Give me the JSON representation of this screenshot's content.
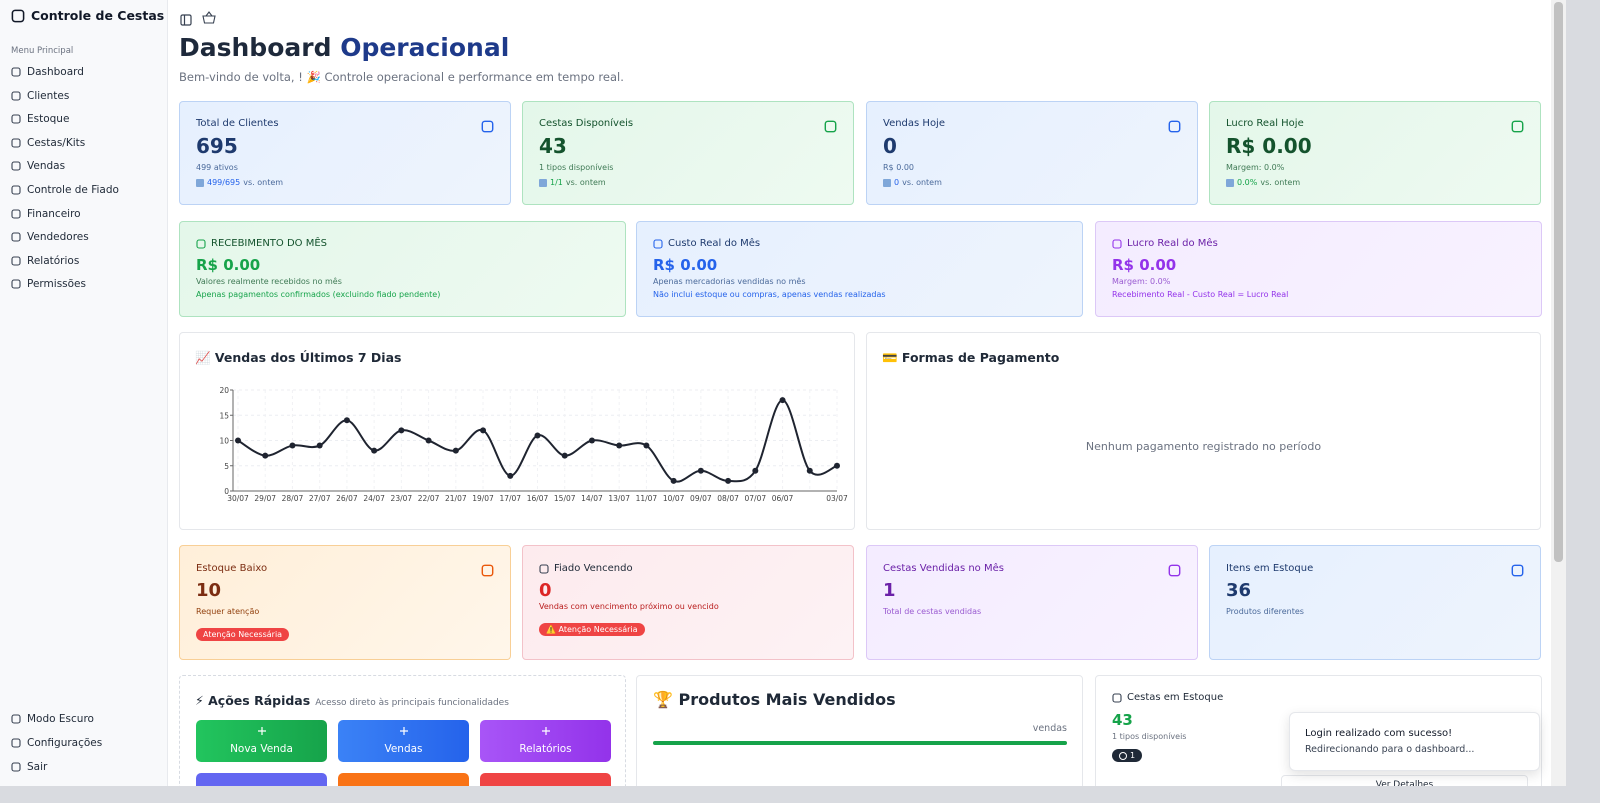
{
  "sidebar": {
    "brand": "Controle de Cestas",
    "section": "Menu Principal",
    "menu": [
      "Dashboard",
      "Clientes",
      "Estoque",
      "Cestas/Kits",
      "Vendas",
      "Controle de Fiado",
      "Financeiro",
      "Vendedores",
      "Relatórios",
      "Permissões"
    ],
    "footer": [
      "Modo Escuro",
      "Configurações",
      "Sair"
    ]
  },
  "header": {
    "title": [
      "Dashboard",
      "Operacional"
    ],
    "subtitle": "Bem-vindo de volta, ! 🎉 Controle operacional e performance em tempo real."
  },
  "summary_cards": [
    {
      "label": "Total de Clientes",
      "value": "695",
      "detail": "499 ativos",
      "trend": "499/695",
      "trend_text": "vs. ontem"
    },
    {
      "label": "Cestas Disponíveis",
      "value": "43",
      "detail": "1 tipos disponíveis",
      "trend": "1/1",
      "trend_text": "vs. ontem"
    },
    {
      "label": "Vendas Hoje",
      "value": "0",
      "detail": "R$ 0.00",
      "trend": "0",
      "trend_text": "vs. ontem"
    },
    {
      "label": "Lucro Real Hoje",
      "value": "R$ 0.00",
      "detail": "Margem: 0.0%",
      "trend": "0.0%",
      "trend_text": "vs. ontem"
    }
  ],
  "month_cards": [
    {
      "label": "RECEBIMENTO DO MÊS",
      "value": "R$ 0.00",
      "line1": "Valores realmente recebidos no mês",
      "line2": "Apenas pagamentos confirmados (excluindo fiado pendente)"
    },
    {
      "label": "Custo Real do Mês",
      "value": "R$ 0.00",
      "line1": "Apenas mercadorias vendidas no mês",
      "line2": "Não inclui estoque ou compras, apenas vendas realizadas"
    },
    {
      "label": "Lucro Real do Mês",
      "value": "R$ 0.00",
      "line1": "Margem: 0.0%",
      "line2": "Recebimento Real - Custo Real = Lucro Real"
    }
  ],
  "chart_data": {
    "type": "line",
    "title": "📈 Vendas dos Últimos 7 Dias",
    "categories": [
      "30/07",
      "29/07",
      "28/07",
      "27/07",
      "26/07",
      "24/07",
      "23/07",
      "22/07",
      "21/07",
      "19/07",
      "17/07",
      "16/07",
      "15/07",
      "14/07",
      "13/07",
      "11/07",
      "10/07",
      "09/07",
      "08/07",
      "07/07",
      "06/07",
      null,
      "03/07"
    ],
    "values": [
      10,
      7,
      9,
      9,
      14,
      8,
      12,
      10,
      8,
      12,
      3,
      11,
      7,
      10,
      9,
      9,
      2,
      4,
      2,
      4,
      18,
      4,
      5
    ],
    "color": "#1f2430",
    "ylim": [
      0,
      20
    ],
    "yticks": [
      0,
      5,
      10,
      15,
      20
    ],
    "grid": true
  },
  "payments": {
    "title": "💳 Formas de Pagamento",
    "empty": "Nenhum pagamento registrado no período"
  },
  "alert_cards": [
    {
      "label": "Estoque Baixo",
      "value": "10",
      "detail": "Requer atenção",
      "badge": "Atenção Necessária"
    },
    {
      "label": "Fiado Vencendo",
      "value": "0",
      "detail": "Vendas com vencimento próximo ou vencido",
      "badge": "⚠️ Atenção Necessária"
    },
    {
      "label": "Cestas Vendidas no Mês",
      "value": "1",
      "detail": "Total de cestas vendidas"
    },
    {
      "label": "Itens em Estoque",
      "value": "36",
      "detail": "Produtos diferentes"
    }
  ],
  "quick_actions": {
    "title": "⚡ Ações Rápidas",
    "subtitle": "Acesso direto às principais funcionalidades",
    "buttons": [
      "Nova Venda",
      "Vendas",
      "Relatórios"
    ]
  },
  "top_products": {
    "title": "🏆 Produtos Mais Vendidos",
    "unit": "vendas"
  },
  "stock_baskets": {
    "title": "Cestas em Estoque",
    "value": "43",
    "detail": "1 tipos disponíveis",
    "badge": "1",
    "link": "Ver Detalhes"
  },
  "toast": {
    "title": "Login realizado com sucesso!",
    "message": "Redirecionando para o dashboard..."
  }
}
